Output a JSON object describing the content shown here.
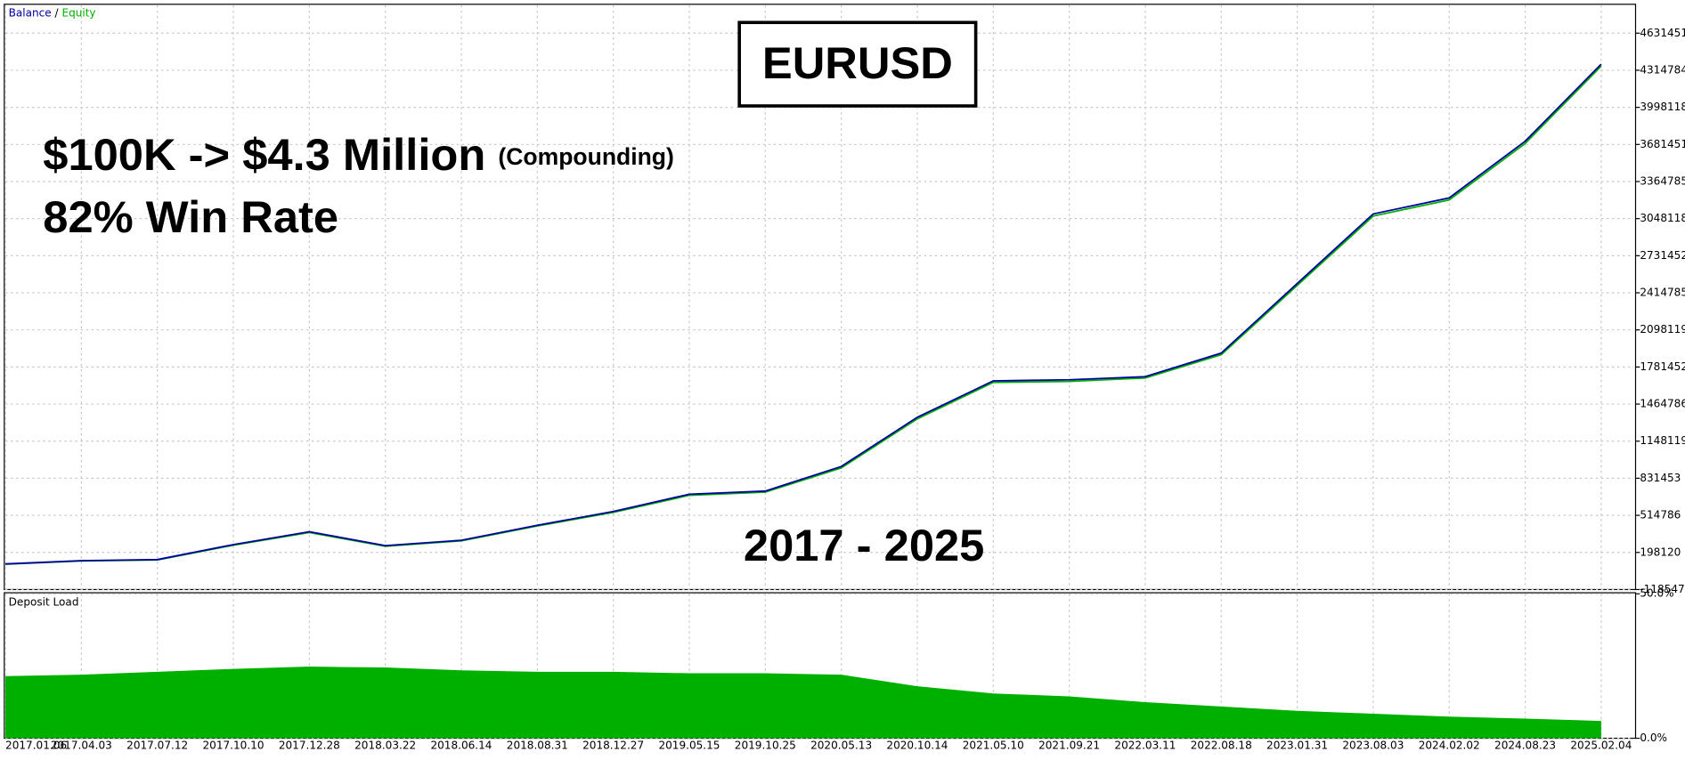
{
  "chart_data": [
    {
      "type": "line",
      "legend_separator": "/",
      "annotations": {
        "box_title": "EURUSD",
        "headline": "$100K -> $4.3 Million",
        "headline_note": "(Compounding)",
        "win_rate": "82% Win Rate",
        "period": "2017 - 2025"
      },
      "categories": [
        "2017.01.06",
        "2017.04.03",
        "2017.07.12",
        "2017.10.10",
        "2017.12.28",
        "2018.03.22",
        "2018.06.14",
        "2018.08.31",
        "2018.12.27",
        "2019.05.15",
        "2019.10.25",
        "2020.05.13",
        "2020.10.14",
        "2021.05.10",
        "2021.09.21",
        "2022.03.11",
        "2022.08.18",
        "2023.01.31",
        "2023.08.03",
        "2024.02.02",
        "2024.08.23",
        "2025.02.04"
      ],
      "series": [
        {
          "name": "Balance",
          "color": "#0000a0",
          "values": [
            100000,
            128000,
            137000,
            265000,
            375000,
            256000,
            302000,
            430000,
            548000,
            695000,
            722000,
            932000,
            1352000,
            1663000,
            1672000,
            1699000,
            1900000,
            2494000,
            3088000,
            3225000,
            3709000,
            4367000
          ]
        },
        {
          "name": "Equity",
          "color": "#00b000",
          "values": [
            98000,
            125000,
            134000,
            260000,
            368000,
            251000,
            297000,
            424000,
            540000,
            686000,
            713000,
            920000,
            1338000,
            1650000,
            1658000,
            1688000,
            1886000,
            2478000,
            3070000,
            3208000,
            3690000,
            4350000
          ]
        }
      ],
      "ylim": [
        -118547,
        4868935
      ],
      "yticks": [
        4631451,
        4314784,
        3998118,
        3681451,
        3364785,
        3048118,
        2731452,
        2414785,
        2098119,
        1781452,
        1464786,
        1148119,
        831453,
        514786,
        198120,
        -118547
      ],
      "grid": true
    },
    {
      "type": "area",
      "title": "Deposit Load",
      "color": "#00b000",
      "values": [
        21.5,
        22,
        23,
        24,
        24.8,
        24.5,
        23.5,
        23,
        23,
        22.5,
        22.5,
        22,
        18,
        15.5,
        14.5,
        12.5,
        11,
        9.5,
        8.5,
        7.5,
        6.8,
        6
      ],
      "ylim": [
        0,
        50
      ],
      "yticks": [
        {
          "value": 50,
          "label": "50.0%"
        },
        {
          "value": 0,
          "label": "0.0%"
        }
      ],
      "grid": true
    }
  ]
}
